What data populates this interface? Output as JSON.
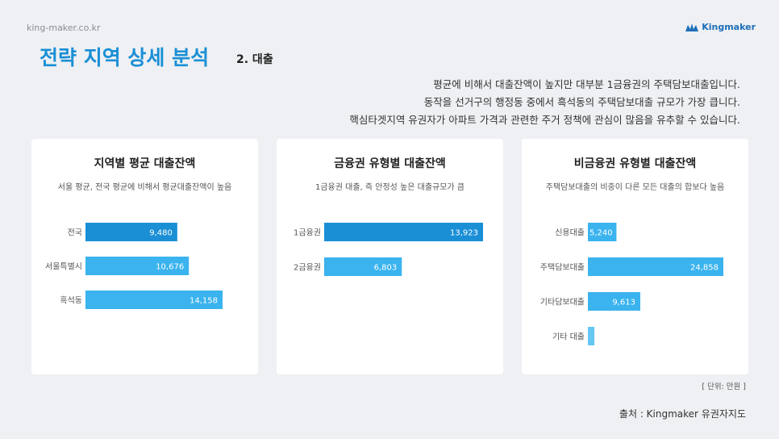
{
  "header": {
    "site": "king-maker.co.kr",
    "logo_text": "Kingmaker",
    "title": "전략 지역 상세 분석",
    "subtitle": "2. 대출"
  },
  "description": [
    "평균에 비해서 대출잔액이 높지만 대부분 1금융권의 주택담보대출입니다.",
    "동작을 선거구의 행정동 중에서 흑석동의 주택담보대출 규모가 가장 큽니다.",
    "핵심타겟지역 유권자가 아파트 가격과 관련한 주거 정책에 관심이 많음을 유추할 수 있습니다."
  ],
  "colors": {
    "bar_dark": "#1a8fd6",
    "bar_light": "#3ab3ee",
    "bar_pale": "#66c6f2",
    "title": "#1a8fd6"
  },
  "chart_data": [
    {
      "type": "bar",
      "orientation": "horizontal",
      "title": "지역별 평균 대출잔액",
      "subtitle": "서울 평균, 전국 평균에 비해서 평균대출잔액이 높음",
      "categories": [
        "전국",
        "서울특별시",
        "흑석동"
      ],
      "values": [
        9480,
        10676,
        14158
      ],
      "value_labels": [
        "9,480",
        "10,676",
        "14,158"
      ],
      "xmax": 14158
    },
    {
      "type": "bar",
      "orientation": "horizontal",
      "title": "금융권 유형별 대출잔액",
      "subtitle": "1금융권 대출, 즉 안정성 높은 대출규모가 큼",
      "categories": [
        "1금융권",
        "2금융권"
      ],
      "values": [
        13923,
        6803
      ],
      "value_labels": [
        "13,923",
        "6,803"
      ],
      "xmax": 13923
    },
    {
      "type": "bar",
      "orientation": "horizontal",
      "title": "비금융권 유형별 대출잔액",
      "subtitle": "주택담보대출의 비중이 다른 모든 대출의 합보다 높음",
      "categories": [
        "신용대출",
        "주택담보대출",
        "기타담보대출",
        "기타 대출"
      ],
      "values": [
        5240,
        24858,
        9613,
        1200
      ],
      "value_labels": [
        "5,240",
        "24,858",
        "9,613",
        ""
      ],
      "xmax": 24858
    }
  ],
  "footer": {
    "unit": "[ 단위: 만원 ]",
    "source": "출처 : Kingmaker 유권자지도"
  }
}
